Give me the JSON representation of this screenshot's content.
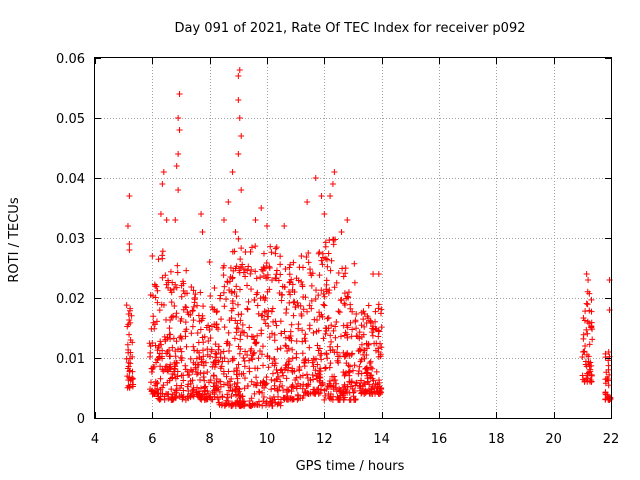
{
  "chart_data": {
    "type": "scatter",
    "title": "Day 091 of 2021, Rate Of TEC Index for receiver p092",
    "xlabel": "GPS time / hours",
    "ylabel": "ROTI / TECUs",
    "xlim": [
      4,
      22
    ],
    "ylim": [
      0,
      0.06
    ],
    "xticks": [
      "4",
      "6",
      "8",
      "10",
      "12",
      "14",
      "16",
      "18",
      "20",
      "22"
    ],
    "yticks": [
      "0",
      "0.01",
      "0.02",
      "0.03",
      "0.04",
      "0.05",
      "0.06"
    ],
    "grid": true,
    "marker": "plus",
    "color": "#ff0000",
    "series": [
      {
        "name": "ROTI",
        "clusters": [
          {
            "x": [
              5.1,
              5.35
            ],
            "ymin": 0.005,
            "ymax": 0.019,
            "peaks": [
              [
                5.2,
                0.037
              ],
              [
                5.15,
                0.032
              ],
              [
                5.2,
                0.029
              ],
              [
                5.2,
                0.028
              ]
            ]
          },
          {
            "x": [
              5.9,
              6.2
            ],
            "ymin": 0.004,
            "ymax": 0.024,
            "peaks": [
              [
                6.0,
                0.027
              ],
              [
                6.1,
                0.022
              ]
            ]
          },
          {
            "x": [
              6.2,
              6.6
            ],
            "ymin": 0.003,
            "ymax": 0.028,
            "peaks": [
              [
                6.4,
                0.041
              ],
              [
                6.35,
                0.039
              ],
              [
                6.3,
                0.034
              ],
              [
                6.5,
                0.033
              ]
            ]
          },
          {
            "x": [
              6.6,
              7.3
            ],
            "ymin": 0.003,
            "ymax": 0.027,
            "peaks": [
              [
                6.95,
                0.054
              ],
              [
                6.9,
                0.05
              ],
              [
                6.95,
                0.048
              ],
              [
                6.9,
                0.044
              ],
              [
                6.85,
                0.042
              ],
              [
                6.9,
                0.038
              ],
              [
                6.8,
                0.033
              ]
            ]
          },
          {
            "x": [
              7.3,
              8.3
            ],
            "ymin": 0.003,
            "ymax": 0.022,
            "peaks": [
              [
                7.7,
                0.034
              ],
              [
                7.75,
                0.031
              ],
              [
                8.0,
                0.026
              ]
            ]
          },
          {
            "x": [
              8.3,
              9.1
            ],
            "ymin": 0.002,
            "ymax": 0.028,
            "peaks": [
              [
                8.8,
                0.041
              ],
              [
                8.65,
                0.036
              ],
              [
                8.5,
                0.033
              ],
              [
                8.9,
                0.031
              ]
            ]
          },
          {
            "x": [
              8.9,
              9.25
            ],
            "ymin": 0.002,
            "ymax": 0.03,
            "peaks": [
              [
                9.05,
                0.058
              ],
              [
                9.0,
                0.057
              ],
              [
                9.0,
                0.053
              ],
              [
                9.05,
                0.05
              ],
              [
                9.1,
                0.047
              ],
              [
                9.0,
                0.044
              ],
              [
                9.1,
                0.038
              ]
            ]
          },
          {
            "x": [
              9.3,
              10.5
            ],
            "ymin": 0.002,
            "ymax": 0.029,
            "peaks": [
              [
                9.8,
                0.035
              ],
              [
                9.6,
                0.033
              ],
              [
                10.0,
                0.032
              ]
            ]
          },
          {
            "x": [
              10.5,
              11.3
            ],
            "ymin": 0.003,
            "ymax": 0.026,
            "peaks": [
              [
                10.6,
                0.032
              ],
              [
                11.2,
                0.027
              ]
            ]
          },
          {
            "x": [
              11.3,
              11.9
            ],
            "ymin": 0.004,
            "ymax": 0.028,
            "peaks": [
              [
                11.7,
                0.04
              ],
              [
                11.9,
                0.037
              ],
              [
                11.4,
                0.036
              ]
            ]
          },
          {
            "x": [
              11.9,
              12.4
            ],
            "ymin": 0.003,
            "ymax": 0.03,
            "peaks": [
              [
                12.35,
                0.041
              ],
              [
                12.3,
                0.039
              ],
              [
                12.2,
                0.037
              ],
              [
                12.0,
                0.034
              ]
            ]
          },
          {
            "x": [
              12.4,
              13.1
            ],
            "ymin": 0.003,
            "ymax": 0.027,
            "peaks": [
              [
                12.8,
                0.033
              ],
              [
                12.6,
                0.031
              ]
            ]
          },
          {
            "x": [
              13.1,
              14.0
            ],
            "ymin": 0.004,
            "ymax": 0.019,
            "peaks": [
              [
                13.7,
                0.024
              ],
              [
                13.9,
                0.024
              ]
            ]
          },
          {
            "x": [
              21.0,
              21.35
            ],
            "ymin": 0.006,
            "ymax": 0.022,
            "peaks": [
              [
                21.15,
                0.024
              ],
              [
                21.2,
                0.023
              ]
            ]
          },
          {
            "x": [
              21.8,
              22.0
            ],
            "ymin": 0.003,
            "ymax": 0.012,
            "peaks": [
              [
                21.95,
                0.023
              ],
              [
                21.95,
                0.018
              ]
            ]
          }
        ]
      }
    ]
  }
}
